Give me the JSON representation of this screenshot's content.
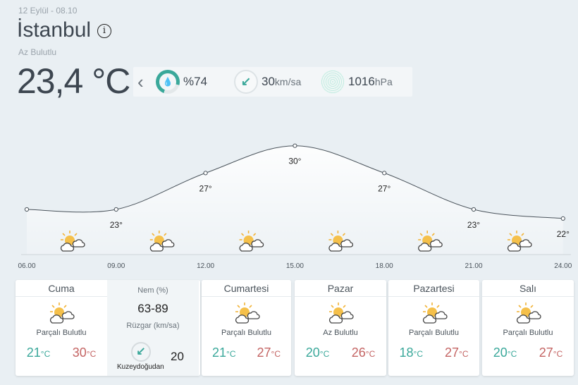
{
  "header": {
    "date": "12 Eylül - 08.10",
    "city": "İstanbul",
    "condition": "Az Bulutlu",
    "temperature": "23,4 °C"
  },
  "stats": {
    "humidity": "%74",
    "humidity_fraction": 0.74,
    "wind_value": "30",
    "wind_unit": "km/sa",
    "pressure_value": "1016",
    "pressure_unit": "hPa",
    "accent": "#3aa89a"
  },
  "chart_data": {
    "type": "line",
    "x": [
      "06.00",
      "09.00",
      "12.00",
      "15.00",
      "18.00",
      "21.00",
      "24.00"
    ],
    "values": [
      23,
      23,
      27,
      30,
      27,
      23,
      22
    ],
    "labels": [
      "",
      "23°",
      "27°",
      "30°",
      "27°",
      "23°",
      "22°"
    ],
    "icon": "partly-cloudy"
  },
  "forecast": [
    {
      "day": "Cuma",
      "desc": "Parçalı Bulutlu",
      "lo": "21",
      "hi": "30",
      "unit": "°C"
    },
    {
      "day": "Cumartesi",
      "desc": "Parçalı Bulutlu",
      "lo": "21",
      "hi": "27",
      "unit": "°C"
    },
    {
      "day": "Pazar",
      "desc": "Az Bulutlu",
      "lo": "20",
      "hi": "26",
      "unit": "°C"
    },
    {
      "day": "Pazartesi",
      "desc": "Parçalı Bulutlu",
      "lo": "18",
      "hi": "27",
      "unit": "°C"
    },
    {
      "day": "Salı",
      "desc": "Parçalı Bulutlu",
      "lo": "20",
      "hi": "27",
      "unit": "°C"
    }
  ],
  "detail": {
    "humidity_label": "Nem (%)",
    "humidity_range": "63-89",
    "wind_label": "Rüzgar (km/sa)",
    "wind_dir": "Kuzeydoğudan",
    "wind_speed": "20"
  }
}
